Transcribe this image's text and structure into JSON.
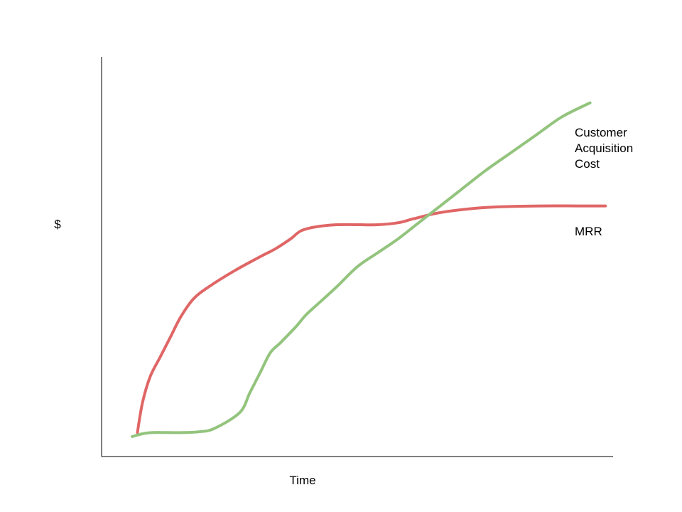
{
  "chart_data": {
    "type": "line",
    "title": "",
    "xlabel": "Time",
    "ylabel": "$",
    "xlim": [
      0,
      100
    ],
    "ylim": [
      0,
      100
    ],
    "grid": false,
    "series": [
      {
        "name": "MRR",
        "color": "#e06666",
        "label_lines": [
          "MRR"
        ],
        "x": [
          7,
          8,
          9.5,
          11.5,
          13.5,
          15.5,
          18,
          21,
          26,
          31,
          34,
          37,
          39,
          42,
          46,
          50,
          54,
          58,
          61,
          66,
          72,
          78,
          86,
          93,
          98.5
        ],
        "y": [
          6,
          13.5,
          20,
          25,
          30,
          35,
          39.5,
          42.5,
          46.5,
          50,
          52,
          54.5,
          56.5,
          57.5,
          58,
          58,
          58,
          58.5,
          59.5,
          61,
          62,
          62.5,
          62.7,
          62.7,
          62.7
        ]
      },
      {
        "name": "Customer Acquisition Cost",
        "color": "#93c47d",
        "label_lines": [
          "Customer",
          "Acquisition",
          "Cost"
        ],
        "x": [
          6,
          8,
          10,
          13,
          16,
          19,
          22,
          27,
          29,
          31,
          33,
          35,
          38,
          40,
          43,
          46,
          50,
          54,
          58,
          62,
          66,
          70,
          75,
          80,
          85,
          90,
          95.5
        ],
        "y": [
          5,
          5.7,
          6,
          6,
          6,
          6.2,
          7,
          11,
          16,
          21,
          26,
          28.5,
          32.5,
          35.5,
          39,
          42.5,
          47.5,
          51,
          54.5,
          58.5,
          62.5,
          66.5,
          71.5,
          76,
          80.5,
          85,
          88.5
        ]
      }
    ]
  }
}
